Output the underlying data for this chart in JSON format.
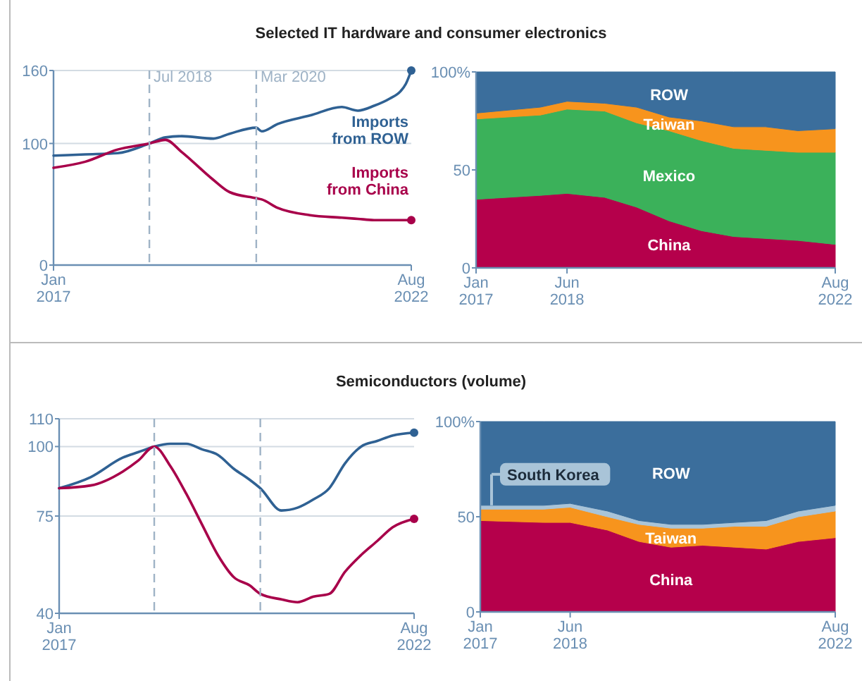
{
  "chart_data": [
    {
      "type": "line",
      "title": "Selected IT hardware and consumer electronics",
      "x": [
        "2017-01",
        "2017-07",
        "2018-01",
        "2018-07",
        "2018-10",
        "2019-01",
        "2019-07",
        "2019-10",
        "2020-03",
        "2020-04",
        "2020-07",
        "2021-01",
        "2021-07",
        "2021-10",
        "2022-01",
        "2022-04",
        "2022-06",
        "2022-07",
        "2022-08"
      ],
      "series": [
        {
          "name": "Imports from ROW",
          "color": "#2f6193",
          "values": [
            90,
            91,
            92,
            100,
            105,
            106,
            104,
            108,
            113,
            110,
            116,
            123,
            130,
            127,
            131,
            137,
            143,
            149,
            160
          ]
        },
        {
          "name": "Imports from China",
          "color": "#a8004a",
          "values": [
            80,
            85,
            95,
            100,
            103,
            93,
            70,
            60,
            55,
            54,
            47,
            41,
            39,
            38,
            37,
            37,
            37,
            37,
            37
          ]
        }
      ],
      "xlim": [
        "2017-01",
        "2022-08"
      ],
      "ylim": [
        0,
        160
      ],
      "yticks": [
        0,
        100,
        160
      ],
      "xticks": [
        {
          "value": "2017-01",
          "label": "Jan 2017"
        },
        {
          "value": "2022-08",
          "label": "Aug 2022"
        }
      ],
      "ref_lines": [
        {
          "axis": "x",
          "value": "2018-07",
          "label": "Jul 2018",
          "color": "#9fb3c6",
          "line_style": "dashed"
        },
        {
          "axis": "x",
          "value": "2020-03",
          "label": "Mar 2020",
          "color": "#9fb3c6",
          "line_style": "dashed"
        }
      ],
      "grid": "y"
    },
    {
      "type": "area",
      "stacked": true,
      "x": [
        "2017-01",
        "2018-01",
        "2018-06",
        "2019-01",
        "2019-07",
        "2020-01",
        "2020-07",
        "2021-01",
        "2021-07",
        "2022-01",
        "2022-08"
      ],
      "series": [
        {
          "name": "China",
          "color": "#b5004b",
          "values": [
            35,
            37,
            38,
            36,
            31,
            24,
            19,
            16,
            15,
            14,
            12
          ]
        },
        {
          "name": "Mexico",
          "color": "#3bb15a",
          "values": [
            41,
            41,
            43,
            44,
            43,
            46,
            46,
            45,
            45,
            45,
            47
          ]
        },
        {
          "name": "Taiwan",
          "color": "#f7941d",
          "values": [
            3,
            4,
            4,
            4,
            8,
            7,
            10,
            11,
            12,
            11,
            12
          ]
        },
        {
          "name": "ROW",
          "color": "#3b6e9c",
          "values": [
            21,
            18,
            15,
            16,
            18,
            23,
            25,
            28,
            28,
            30,
            29
          ]
        }
      ],
      "xlim": [
        "2017-01",
        "2022-08"
      ],
      "ylim": [
        0,
        100
      ],
      "yticks": [
        0,
        50,
        {
          "value": 100,
          "label": "100%"
        }
      ],
      "xticks": [
        {
          "value": "2017-01",
          "label": "Jan 2017"
        },
        {
          "value": "2018-06",
          "label": "Jun 2018"
        },
        {
          "value": "2022-08",
          "label": "Aug 2022"
        }
      ]
    },
    {
      "type": "line",
      "title": "Semiconductors (volume)",
      "x": [
        "2017-01",
        "2017-07",
        "2018-01",
        "2018-04",
        "2018-07",
        "2018-10",
        "2019-01",
        "2019-04",
        "2019-07",
        "2019-10",
        "2020-01",
        "2020-03",
        "2020-07",
        "2020-10",
        "2021-01",
        "2021-04",
        "2021-07",
        "2021-10",
        "2022-01",
        "2022-04",
        "2022-08"
      ],
      "series": [
        {
          "color": "#2f6193",
          "values": [
            85,
            89,
            96,
            98,
            100,
            101,
            101,
            99,
            97,
            92,
            88,
            85,
            77,
            78,
            81,
            85,
            94,
            100,
            102,
            104,
            105
          ]
        },
        {
          "color": "#a8004a",
          "values": [
            85,
            86,
            91,
            95,
            100,
            93,
            83,
            72,
            61,
            53,
            50,
            47,
            45,
            44,
            46,
            47,
            55,
            61,
            66,
            71,
            74
          ]
        }
      ],
      "xlim": [
        "2017-01",
        "2022-08"
      ],
      "ylim": [
        40,
        110
      ],
      "yticks": [
        40,
        75,
        100,
        110
      ],
      "xticks": [
        {
          "value": "2017-01",
          "label": "Jan 2017"
        },
        {
          "value": "2022-08",
          "label": "Aug 2022"
        }
      ],
      "ref_lines": [
        {
          "axis": "x",
          "value": "2018-07",
          "color": "#9fb3c6",
          "line_style": "dashed"
        },
        {
          "axis": "x",
          "value": "2020-03",
          "color": "#9fb3c6",
          "line_style": "dashed"
        }
      ],
      "grid": "y"
    },
    {
      "type": "area",
      "stacked": true,
      "x": [
        "2017-01",
        "2018-01",
        "2018-06",
        "2019-01",
        "2019-07",
        "2020-01",
        "2020-07",
        "2021-01",
        "2021-07",
        "2022-01",
        "2022-08"
      ],
      "series": [
        {
          "name": "China",
          "color": "#b5004b",
          "values": [
            48,
            47,
            47,
            43,
            37,
            34,
            35,
            34,
            33,
            37,
            39
          ]
        },
        {
          "name": "Taiwan",
          "color": "#f7941d",
          "values": [
            6,
            7,
            8,
            7,
            9,
            10,
            9,
            11,
            12,
            13,
            14
          ]
        },
        {
          "name": "South Korea",
          "color": "#a9c4d8",
          "values": [
            2,
            2,
            2,
            3,
            2,
            2,
            2,
            2,
            3,
            3,
            3
          ]
        },
        {
          "name": "ROW",
          "color": "#3b6e9c",
          "values": [
            44,
            44,
            43,
            47,
            52,
            54,
            54,
            53,
            52,
            47,
            44
          ]
        }
      ],
      "xlim": [
        "2017-01",
        "2022-08"
      ],
      "ylim": [
        0,
        100
      ],
      "yticks": [
        0,
        50,
        {
          "value": 100,
          "label": "100%"
        }
      ],
      "xticks": [
        {
          "value": "2017-01",
          "label": "Jan 2017"
        },
        {
          "value": "2018-06",
          "label": "Jun 2018"
        },
        {
          "value": "2022-08",
          "label": "Aug 2022"
        }
      ]
    }
  ]
}
